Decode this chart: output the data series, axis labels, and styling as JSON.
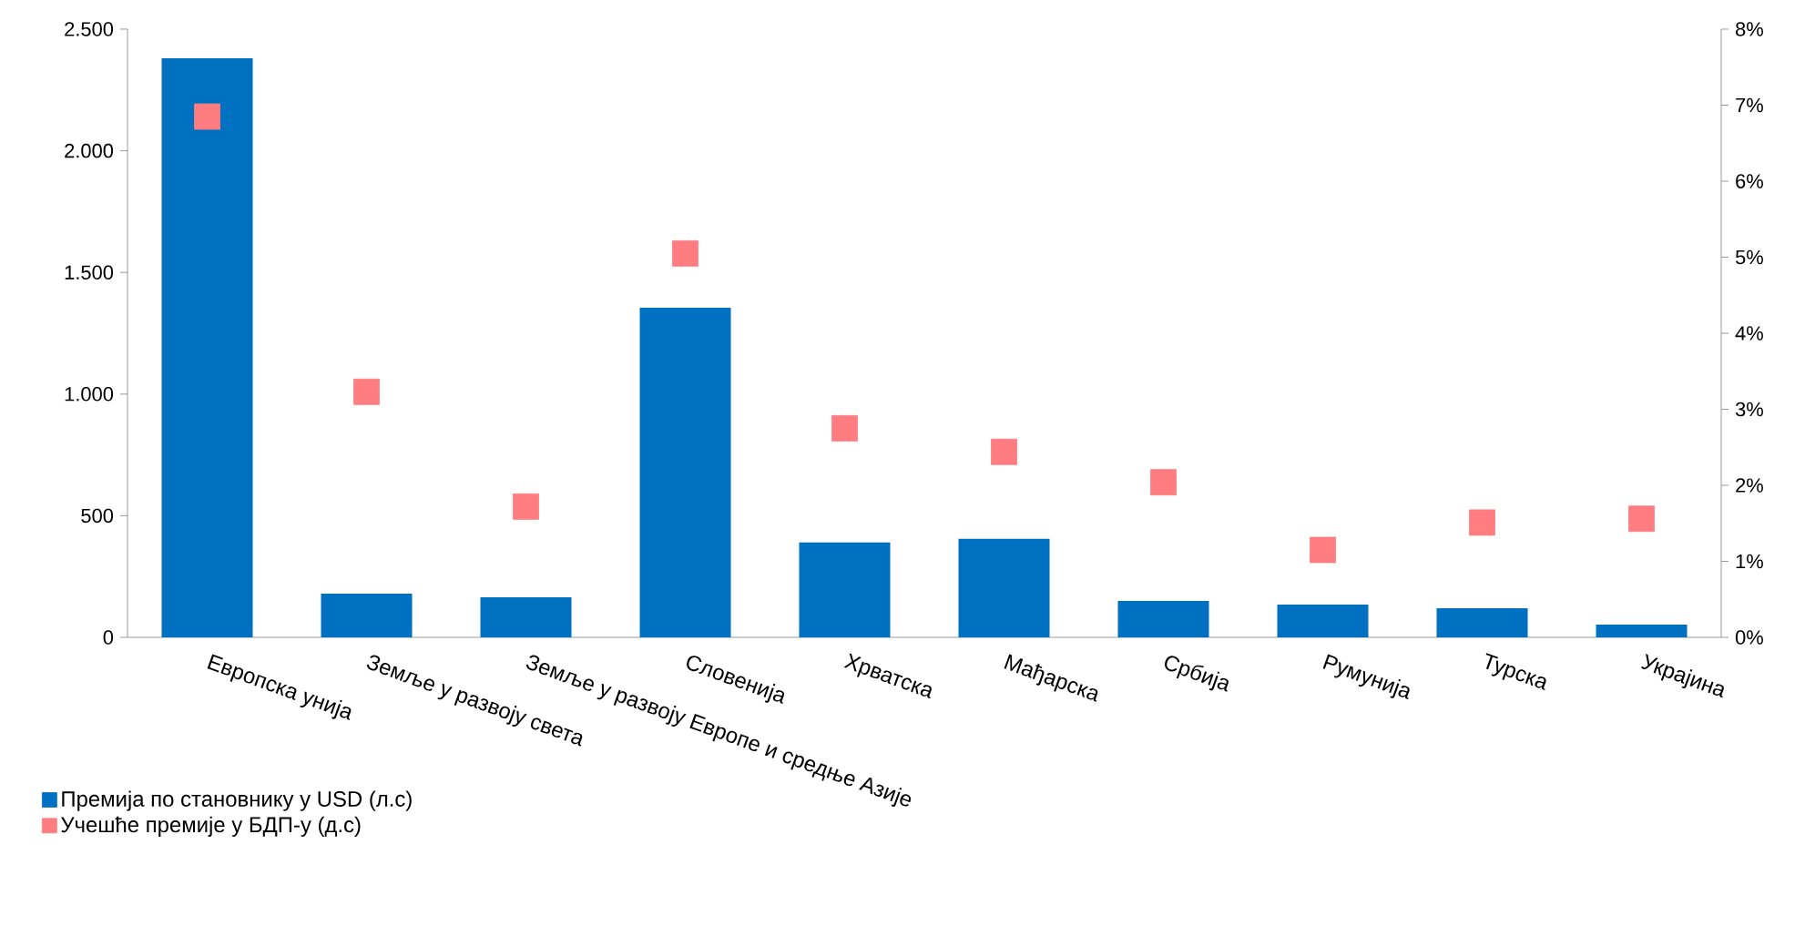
{
  "chart_data": {
    "type": "bar",
    "categories": [
      "Европска унија",
      "Земље у развоју света",
      "Земље у развоју Европе и средње Азије",
      "Словенија",
      "Хрватска",
      "Мађарска",
      "Србија",
      "Румунија",
      "Турска",
      "Украјина"
    ],
    "series": [
      {
        "name": "Премија по становнику у USD (л.с)",
        "color": "#0070c0",
        "values": [
          2380,
          180,
          165,
          1355,
          390,
          405,
          150,
          135,
          120,
          52
        ]
      },
      {
        "name": "Учешће премије у БДП-у (д.с)",
        "type": "scatter",
        "axis": "y2",
        "marker": "square",
        "color": "#ff7c80",
        "values": [
          6.85,
          3.23,
          1.72,
          5.05,
          2.75,
          2.44,
          2.04,
          1.15,
          1.51,
          1.56
        ]
      }
    ],
    "ylim": [
      0,
      2500
    ],
    "yticks": [
      0,
      500,
      {
        "value": 1000,
        "label": "1.000"
      },
      {
        "value": 1500,
        "label": "1.500"
      },
      {
        "value": 2000,
        "label": "2.000"
      },
      {
        "value": 2500,
        "label": "2.500"
      }
    ],
    "y2lim": [
      0,
      8
    ],
    "y2ticks": [
      {
        "value": 0,
        "label": "0%"
      },
      {
        "value": 1,
        "label": "1%"
      },
      {
        "value": 2,
        "label": "2%"
      },
      {
        "value": 3,
        "label": "3%"
      },
      {
        "value": 4,
        "label": "4%"
      },
      {
        "value": 5,
        "label": "5%"
      },
      {
        "value": 6,
        "label": "6%"
      },
      {
        "value": 7,
        "label": "7%"
      },
      {
        "value": 8,
        "label": "8%"
      }
    ],
    "legend": "bottom left",
    "grid": false
  }
}
